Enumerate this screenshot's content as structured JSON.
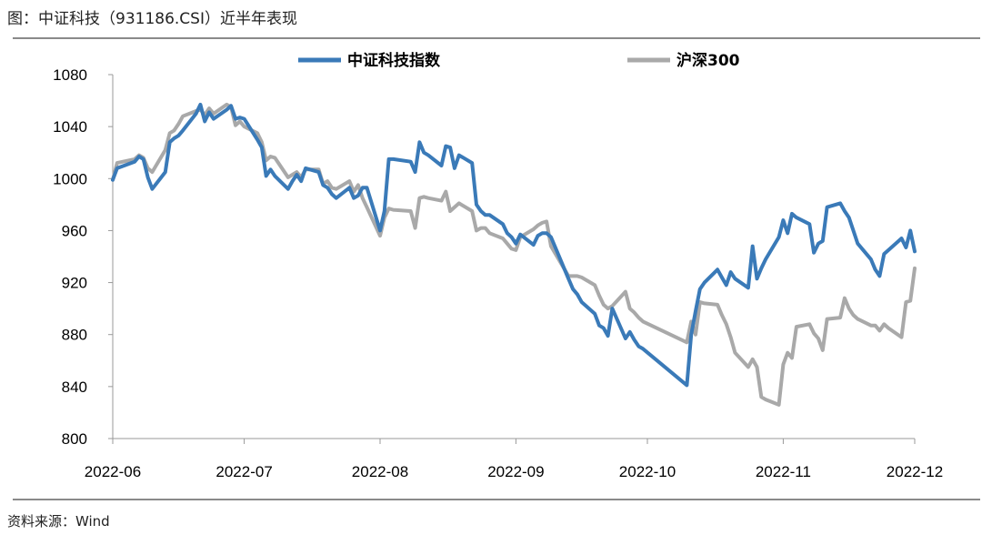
{
  "figure": {
    "caption": "图：中证科技（931186.CSI）近半年表现",
    "source": "资料来源：Wind"
  },
  "colors": {
    "series1": "#3a7ab8",
    "series2": "#a9a9a9",
    "rule": "#444444",
    "axis": "#999999"
  },
  "chart_data": {
    "type": "line",
    "title": "",
    "xlabel": "",
    "ylabel": "",
    "ylim": [
      800,
      1080
    ],
    "y_ticks": [
      800,
      840,
      880,
      920,
      960,
      1000,
      1040,
      1080
    ],
    "x_ticks": [
      "2022-06",
      "2022-07",
      "2022-08",
      "2022-09",
      "2022-10",
      "2022-11",
      "2022-12"
    ],
    "x_range": [
      "2022-06-01",
      "2022-12-01"
    ],
    "grid": false,
    "legend": "top",
    "series": [
      {
        "name": "中证科技指数",
        "points": [
          [
            "2022-06-01",
            999
          ],
          [
            "2022-06-02",
            1008
          ],
          [
            "2022-06-06",
            1013
          ],
          [
            "2022-06-07",
            1017
          ],
          [
            "2022-06-08",
            1015
          ],
          [
            "2022-06-09",
            1001
          ],
          [
            "2022-06-10",
            992
          ],
          [
            "2022-06-13",
            1005
          ],
          [
            "2022-06-14",
            1028
          ],
          [
            "2022-06-15",
            1031
          ],
          [
            "2022-06-16",
            1033
          ],
          [
            "2022-06-17",
            1037
          ],
          [
            "2022-06-20",
            1050
          ],
          [
            "2022-06-21",
            1057
          ],
          [
            "2022-06-22",
            1044
          ],
          [
            "2022-06-23",
            1051
          ],
          [
            "2022-06-24",
            1046
          ],
          [
            "2022-06-27",
            1053
          ],
          [
            "2022-06-28",
            1056
          ],
          [
            "2022-06-29",
            1046
          ],
          [
            "2022-06-30",
            1047
          ],
          [
            "2022-07-01",
            1046
          ],
          [
            "2022-07-04",
            1030
          ],
          [
            "2022-07-05",
            1024
          ],
          [
            "2022-07-06",
            1002
          ],
          [
            "2022-07-07",
            1007
          ],
          [
            "2022-07-08",
            1002
          ],
          [
            "2022-07-11",
            992
          ],
          [
            "2022-07-12",
            998
          ],
          [
            "2022-07-13",
            1003
          ],
          [
            "2022-07-14",
            998
          ],
          [
            "2022-07-15",
            1008
          ],
          [
            "2022-07-18",
            1005
          ],
          [
            "2022-07-19",
            995
          ],
          [
            "2022-07-20",
            993
          ],
          [
            "2022-07-21",
            988
          ],
          [
            "2022-07-22",
            985
          ],
          [
            "2022-07-25",
            993
          ],
          [
            "2022-07-26",
            985
          ],
          [
            "2022-07-27",
            987
          ],
          [
            "2022-07-28",
            993
          ],
          [
            "2022-07-29",
            993
          ],
          [
            "2022-08-01",
            960
          ],
          [
            "2022-08-02",
            975
          ],
          [
            "2022-08-03",
            1015
          ],
          [
            "2022-08-04",
            1015
          ],
          [
            "2022-08-08",
            1013
          ],
          [
            "2022-08-09",
            1005
          ],
          [
            "2022-08-10",
            1028
          ],
          [
            "2022-08-11",
            1020
          ],
          [
            "2022-08-12",
            1018
          ],
          [
            "2022-08-15",
            1010
          ],
          [
            "2022-08-16",
            1025
          ],
          [
            "2022-08-17",
            1024
          ],
          [
            "2022-08-18",
            1008
          ],
          [
            "2022-08-19",
            1018
          ],
          [
            "2022-08-22",
            1012
          ],
          [
            "2022-08-23",
            980
          ],
          [
            "2022-08-24",
            975
          ],
          [
            "2022-08-25",
            972
          ],
          [
            "2022-08-26",
            972
          ],
          [
            "2022-08-29",
            965
          ],
          [
            "2022-08-30",
            958
          ],
          [
            "2022-08-31",
            955
          ],
          [
            "2022-09-01",
            950
          ],
          [
            "2022-09-02",
            957
          ],
          [
            "2022-09-05",
            949
          ],
          [
            "2022-09-06",
            956
          ],
          [
            "2022-09-07",
            958
          ],
          [
            "2022-09-08",
            958
          ],
          [
            "2022-09-09",
            955
          ],
          [
            "2022-09-13",
            923
          ],
          [
            "2022-09-14",
            915
          ],
          [
            "2022-09-15",
            911
          ],
          [
            "2022-09-16",
            905
          ],
          [
            "2022-09-19",
            896
          ],
          [
            "2022-09-20",
            887
          ],
          [
            "2022-09-21",
            885
          ],
          [
            "2022-09-22",
            879
          ],
          [
            "2022-09-23",
            900
          ],
          [
            "2022-09-26",
            877
          ],
          [
            "2022-09-27",
            882
          ],
          [
            "2022-09-28",
            876
          ],
          [
            "2022-09-29",
            871
          ],
          [
            "2022-09-30",
            869
          ],
          [
            "2022-10-10",
            841
          ],
          [
            "2022-10-11",
            880
          ],
          [
            "2022-10-12",
            898
          ],
          [
            "2022-10-13",
            915
          ],
          [
            "2022-10-14",
            920
          ],
          [
            "2022-10-17",
            930
          ],
          [
            "2022-10-18",
            924
          ],
          [
            "2022-10-19",
            918
          ],
          [
            "2022-10-20",
            928
          ],
          [
            "2022-10-21",
            923
          ],
          [
            "2022-10-24",
            916
          ],
          [
            "2022-10-25",
            948
          ],
          [
            "2022-10-26",
            923
          ],
          [
            "2022-10-27",
            931
          ],
          [
            "2022-10-28",
            938
          ],
          [
            "2022-10-31",
            955
          ],
          [
            "2022-11-01",
            968
          ],
          [
            "2022-11-02",
            958
          ],
          [
            "2022-11-03",
            973
          ],
          [
            "2022-11-04",
            970
          ],
          [
            "2022-11-07",
            965
          ],
          [
            "2022-11-08",
            943
          ],
          [
            "2022-11-09",
            950
          ],
          [
            "2022-11-10",
            952
          ],
          [
            "2022-11-11",
            978
          ],
          [
            "2022-11-14",
            981
          ],
          [
            "2022-11-15",
            975
          ],
          [
            "2022-11-16",
            970
          ],
          [
            "2022-11-17",
            960
          ],
          [
            "2022-11-18",
            950
          ],
          [
            "2022-11-21",
            938
          ],
          [
            "2022-11-22",
            930
          ],
          [
            "2022-11-23",
            925
          ],
          [
            "2022-11-24",
            942
          ],
          [
            "2022-11-25",
            945
          ],
          [
            "2022-11-28",
            954
          ],
          [
            "2022-11-29",
            947
          ],
          [
            "2022-11-30",
            960
          ],
          [
            "2022-12-01",
            944
          ]
        ]
      },
      {
        "name": "沪深300",
        "points": [
          [
            "2022-06-01",
            999
          ],
          [
            "2022-06-02",
            1012
          ],
          [
            "2022-06-06",
            1015
          ],
          [
            "2022-06-07",
            1018
          ],
          [
            "2022-06-08",
            1016
          ],
          [
            "2022-06-09",
            1008
          ],
          [
            "2022-06-10",
            1005
          ],
          [
            "2022-06-13",
            1022
          ],
          [
            "2022-06-14",
            1035
          ],
          [
            "2022-06-15",
            1037
          ],
          [
            "2022-06-16",
            1042
          ],
          [
            "2022-06-17",
            1048
          ],
          [
            "2022-06-20",
            1052
          ],
          [
            "2022-06-21",
            1053
          ],
          [
            "2022-06-22",
            1049
          ],
          [
            "2022-06-23",
            1054
          ],
          [
            "2022-06-24",
            1050
          ],
          [
            "2022-06-27",
            1057
          ],
          [
            "2022-06-28",
            1055
          ],
          [
            "2022-06-29",
            1041
          ],
          [
            "2022-06-30",
            1044
          ],
          [
            "2022-07-01",
            1040
          ],
          [
            "2022-07-04",
            1035
          ],
          [
            "2022-07-05",
            1028
          ],
          [
            "2022-07-06",
            1014
          ],
          [
            "2022-07-07",
            1017
          ],
          [
            "2022-07-08",
            1016
          ],
          [
            "2022-07-11",
            1001
          ],
          [
            "2022-07-12",
            1003
          ],
          [
            "2022-07-13",
            1005
          ],
          [
            "2022-07-14",
            1001
          ],
          [
            "2022-07-15",
            1007
          ],
          [
            "2022-07-18",
            1007
          ],
          [
            "2022-07-19",
            996
          ],
          [
            "2022-07-20",
            998
          ],
          [
            "2022-07-21",
            993
          ],
          [
            "2022-07-22",
            992
          ],
          [
            "2022-07-25",
            998
          ],
          [
            "2022-07-26",
            990
          ],
          [
            "2022-07-27",
            995
          ],
          [
            "2022-07-28",
            985
          ],
          [
            "2022-07-29",
            978
          ],
          [
            "2022-08-01",
            956
          ],
          [
            "2022-08-02",
            970
          ],
          [
            "2022-08-03",
            977
          ],
          [
            "2022-08-04",
            976
          ],
          [
            "2022-08-08",
            975
          ],
          [
            "2022-08-09",
            962
          ],
          [
            "2022-08-10",
            985
          ],
          [
            "2022-08-11",
            986
          ],
          [
            "2022-08-12",
            985
          ],
          [
            "2022-08-15",
            983
          ],
          [
            "2022-08-16",
            990
          ],
          [
            "2022-08-17",
            975
          ],
          [
            "2022-08-18",
            978
          ],
          [
            "2022-08-19",
            981
          ],
          [
            "2022-08-22",
            975
          ],
          [
            "2022-08-23",
            960
          ],
          [
            "2022-08-24",
            962
          ],
          [
            "2022-08-25",
            962
          ],
          [
            "2022-08-26",
            958
          ],
          [
            "2022-08-29",
            954
          ],
          [
            "2022-08-30",
            950
          ],
          [
            "2022-08-31",
            946
          ],
          [
            "2022-09-01",
            945
          ],
          [
            "2022-09-02",
            955
          ],
          [
            "2022-09-05",
            961
          ],
          [
            "2022-09-06",
            964
          ],
          [
            "2022-09-07",
            966
          ],
          [
            "2022-09-08",
            967
          ],
          [
            "2022-09-09",
            948
          ],
          [
            "2022-09-13",
            925
          ],
          [
            "2022-09-14",
            925
          ],
          [
            "2022-09-15",
            925
          ],
          [
            "2022-09-16",
            924
          ],
          [
            "2022-09-19",
            918
          ],
          [
            "2022-09-20",
            910
          ],
          [
            "2022-09-21",
            903
          ],
          [
            "2022-09-22",
            900
          ],
          [
            "2022-09-23",
            902
          ],
          [
            "2022-09-26",
            913
          ],
          [
            "2022-09-27",
            900
          ],
          [
            "2022-09-28",
            897
          ],
          [
            "2022-09-29",
            893
          ],
          [
            "2022-09-30",
            890
          ],
          [
            "2022-10-10",
            874
          ],
          [
            "2022-10-11",
            890
          ],
          [
            "2022-10-12",
            880
          ],
          [
            "2022-10-13",
            905
          ],
          [
            "2022-10-14",
            904
          ],
          [
            "2022-10-17",
            903
          ],
          [
            "2022-10-18",
            895
          ],
          [
            "2022-10-19",
            888
          ],
          [
            "2022-10-20",
            878
          ],
          [
            "2022-10-21",
            866
          ],
          [
            "2022-10-24",
            855
          ],
          [
            "2022-10-25",
            861
          ],
          [
            "2022-10-26",
            855
          ],
          [
            "2022-10-27",
            832
          ],
          [
            "2022-10-28",
            830
          ],
          [
            "2022-10-31",
            826
          ],
          [
            "2022-11-01",
            857
          ],
          [
            "2022-11-02",
            866
          ],
          [
            "2022-11-03",
            862
          ],
          [
            "2022-11-04",
            886
          ],
          [
            "2022-11-07",
            888
          ],
          [
            "2022-11-08",
            881
          ],
          [
            "2022-11-09",
            877
          ],
          [
            "2022-11-10",
            868
          ],
          [
            "2022-11-11",
            892
          ],
          [
            "2022-11-14",
            893
          ],
          [
            "2022-11-15",
            908
          ],
          [
            "2022-11-16",
            900
          ],
          [
            "2022-11-17",
            895
          ],
          [
            "2022-11-18",
            892
          ],
          [
            "2022-11-21",
            887
          ],
          [
            "2022-11-22",
            887
          ],
          [
            "2022-11-23",
            883
          ],
          [
            "2022-11-24",
            888
          ],
          [
            "2022-11-25",
            885
          ],
          [
            "2022-11-28",
            878
          ],
          [
            "2022-11-29",
            905
          ],
          [
            "2022-11-30",
            906
          ],
          [
            "2022-12-01",
            931
          ]
        ]
      }
    ]
  }
}
